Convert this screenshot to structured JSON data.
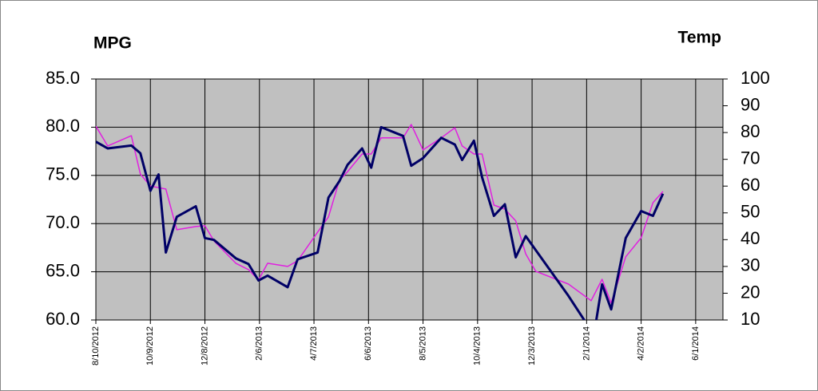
{
  "chart_data": {
    "type": "line",
    "y_label": "MPG",
    "y2_label": "Temp",
    "xlim": [
      "8/10/2012",
      "7/1/2014"
    ],
    "xticks": [
      "8/10/2012",
      "10/9/2012",
      "12/8/2012",
      "2/6/2013",
      "4/7/2013",
      "6/6/2013",
      "8/5/2013",
      "10/4/2013",
      "12/3/2013",
      "2/1/2014",
      "4/2/2014",
      "6/1/2014"
    ],
    "ylim": [
      60,
      85
    ],
    "yticks": [
      {
        "value": 60,
        "label": "60.0"
      },
      {
        "value": 65,
        "label": "65.0"
      },
      {
        "value": 70,
        "label": "70.0"
      },
      {
        "value": 75,
        "label": "75.0"
      },
      {
        "value": 80,
        "label": "80.0"
      },
      {
        "value": 85,
        "label": "85.0"
      }
    ],
    "y2lim": [
      10,
      100
    ],
    "y2ticks": [
      10,
      20,
      30,
      40,
      50,
      60,
      70,
      80,
      90,
      100
    ],
    "grid": true,
    "plot_background": "#c0c0c0",
    "series": [
      {
        "color": "#000066",
        "x": [
          "8/10/2012",
          "8/23/2012",
          "9/18/2012",
          "9/28/2012",
          "10/9/2012",
          "10/18/2012",
          "10/26/2012",
          "11/7/2012",
          "11/28/2012",
          "12/8/2012",
          "12/18/2012",
          "1/11/2013",
          "1/25/2013",
          "2/5/2013",
          "2/15/2013",
          "3/9/2013",
          "3/20/2013",
          "4/11/2013",
          "4/23/2013",
          "5/5/2013",
          "5/14/2013",
          "5/30/2013",
          "6/9/2013",
          "6/20/2013",
          "7/14/2013",
          "7/23/2013",
          "8/5/2013",
          "8/25/2013",
          "9/9/2013",
          "9/17/2013",
          "9/30/2013",
          "10/9/2013",
          "10/22/2013",
          "11/3/2013",
          "11/15/2013",
          "11/26/2013",
          "1/12/2014",
          "1/30/2014",
          "2/11/2014",
          "2/18/2014",
          "2/28/2014",
          "3/16/2014",
          "4/2/2014",
          "4/15/2014",
          "4/26/2014"
        ],
        "values": [
          78.5,
          77.8,
          78.1,
          77.3,
          73.4,
          75.1,
          67.0,
          70.7,
          71.8,
          68.5,
          68.3,
          66.4,
          65.8,
          64.1,
          64.6,
          63.4,
          66.3,
          67.0,
          72.7,
          74.4,
          76.1,
          77.8,
          75.8,
          80.0,
          79.1,
          76.0,
          76.8,
          78.9,
          78.2,
          76.6,
          78.6,
          74.8,
          70.8,
          72.0,
          66.5,
          68.7,
          62.5,
          59.9,
          59.6,
          63.7,
          61.1,
          68.5,
          71.3,
          70.8,
          73.1
        ]
      },
      {
        "color": "#e020e0",
        "axis": "y2",
        "x": [
          "8/10/2012",
          "8/23/2012",
          "9/18/2012",
          "9/28/2012",
          "10/9/2012",
          "10/26/2012",
          "11/7/2012",
          "11/28/2012",
          "12/8/2012",
          "12/18/2012",
          "1/11/2013",
          "1/25/2013",
          "2/5/2013",
          "2/15/2013",
          "3/9/2013",
          "3/20/2013",
          "4/11/2013",
          "4/23/2013",
          "5/5/2013",
          "5/14/2013",
          "5/30/2013",
          "6/9/2013",
          "6/20/2013",
          "7/14/2013",
          "7/23/2013",
          "8/5/2013",
          "8/25/2013",
          "9/9/2013",
          "9/17/2013",
          "9/30/2013",
          "10/9/2013",
          "10/22/2013",
          "11/3/2013",
          "11/15/2013",
          "11/26/2013",
          "12/7/2013",
          "1/12/2014",
          "2/6/2014",
          "2/18/2014",
          "2/28/2014",
          "3/16/2014",
          "4/2/2014",
          "4/15/2014",
          "4/26/2014"
        ],
        "values": [
          82.4,
          75,
          78.8,
          64.5,
          60,
          58.9,
          43.7,
          44.9,
          45.2,
          39.5,
          31.2,
          28.8,
          24.9,
          31.2,
          30.0,
          32.1,
          42.8,
          48.5,
          62.2,
          65.4,
          72.0,
          72.0,
          78.0,
          78.0,
          83.0,
          73.5,
          78.0,
          81.8,
          75,
          72,
          72,
          52.9,
          51.4,
          47.0,
          34.7,
          28.2,
          23.4,
          17.2,
          25.2,
          16.3,
          33.6,
          40.7,
          53.8,
          58.0
        ]
      }
    ]
  }
}
